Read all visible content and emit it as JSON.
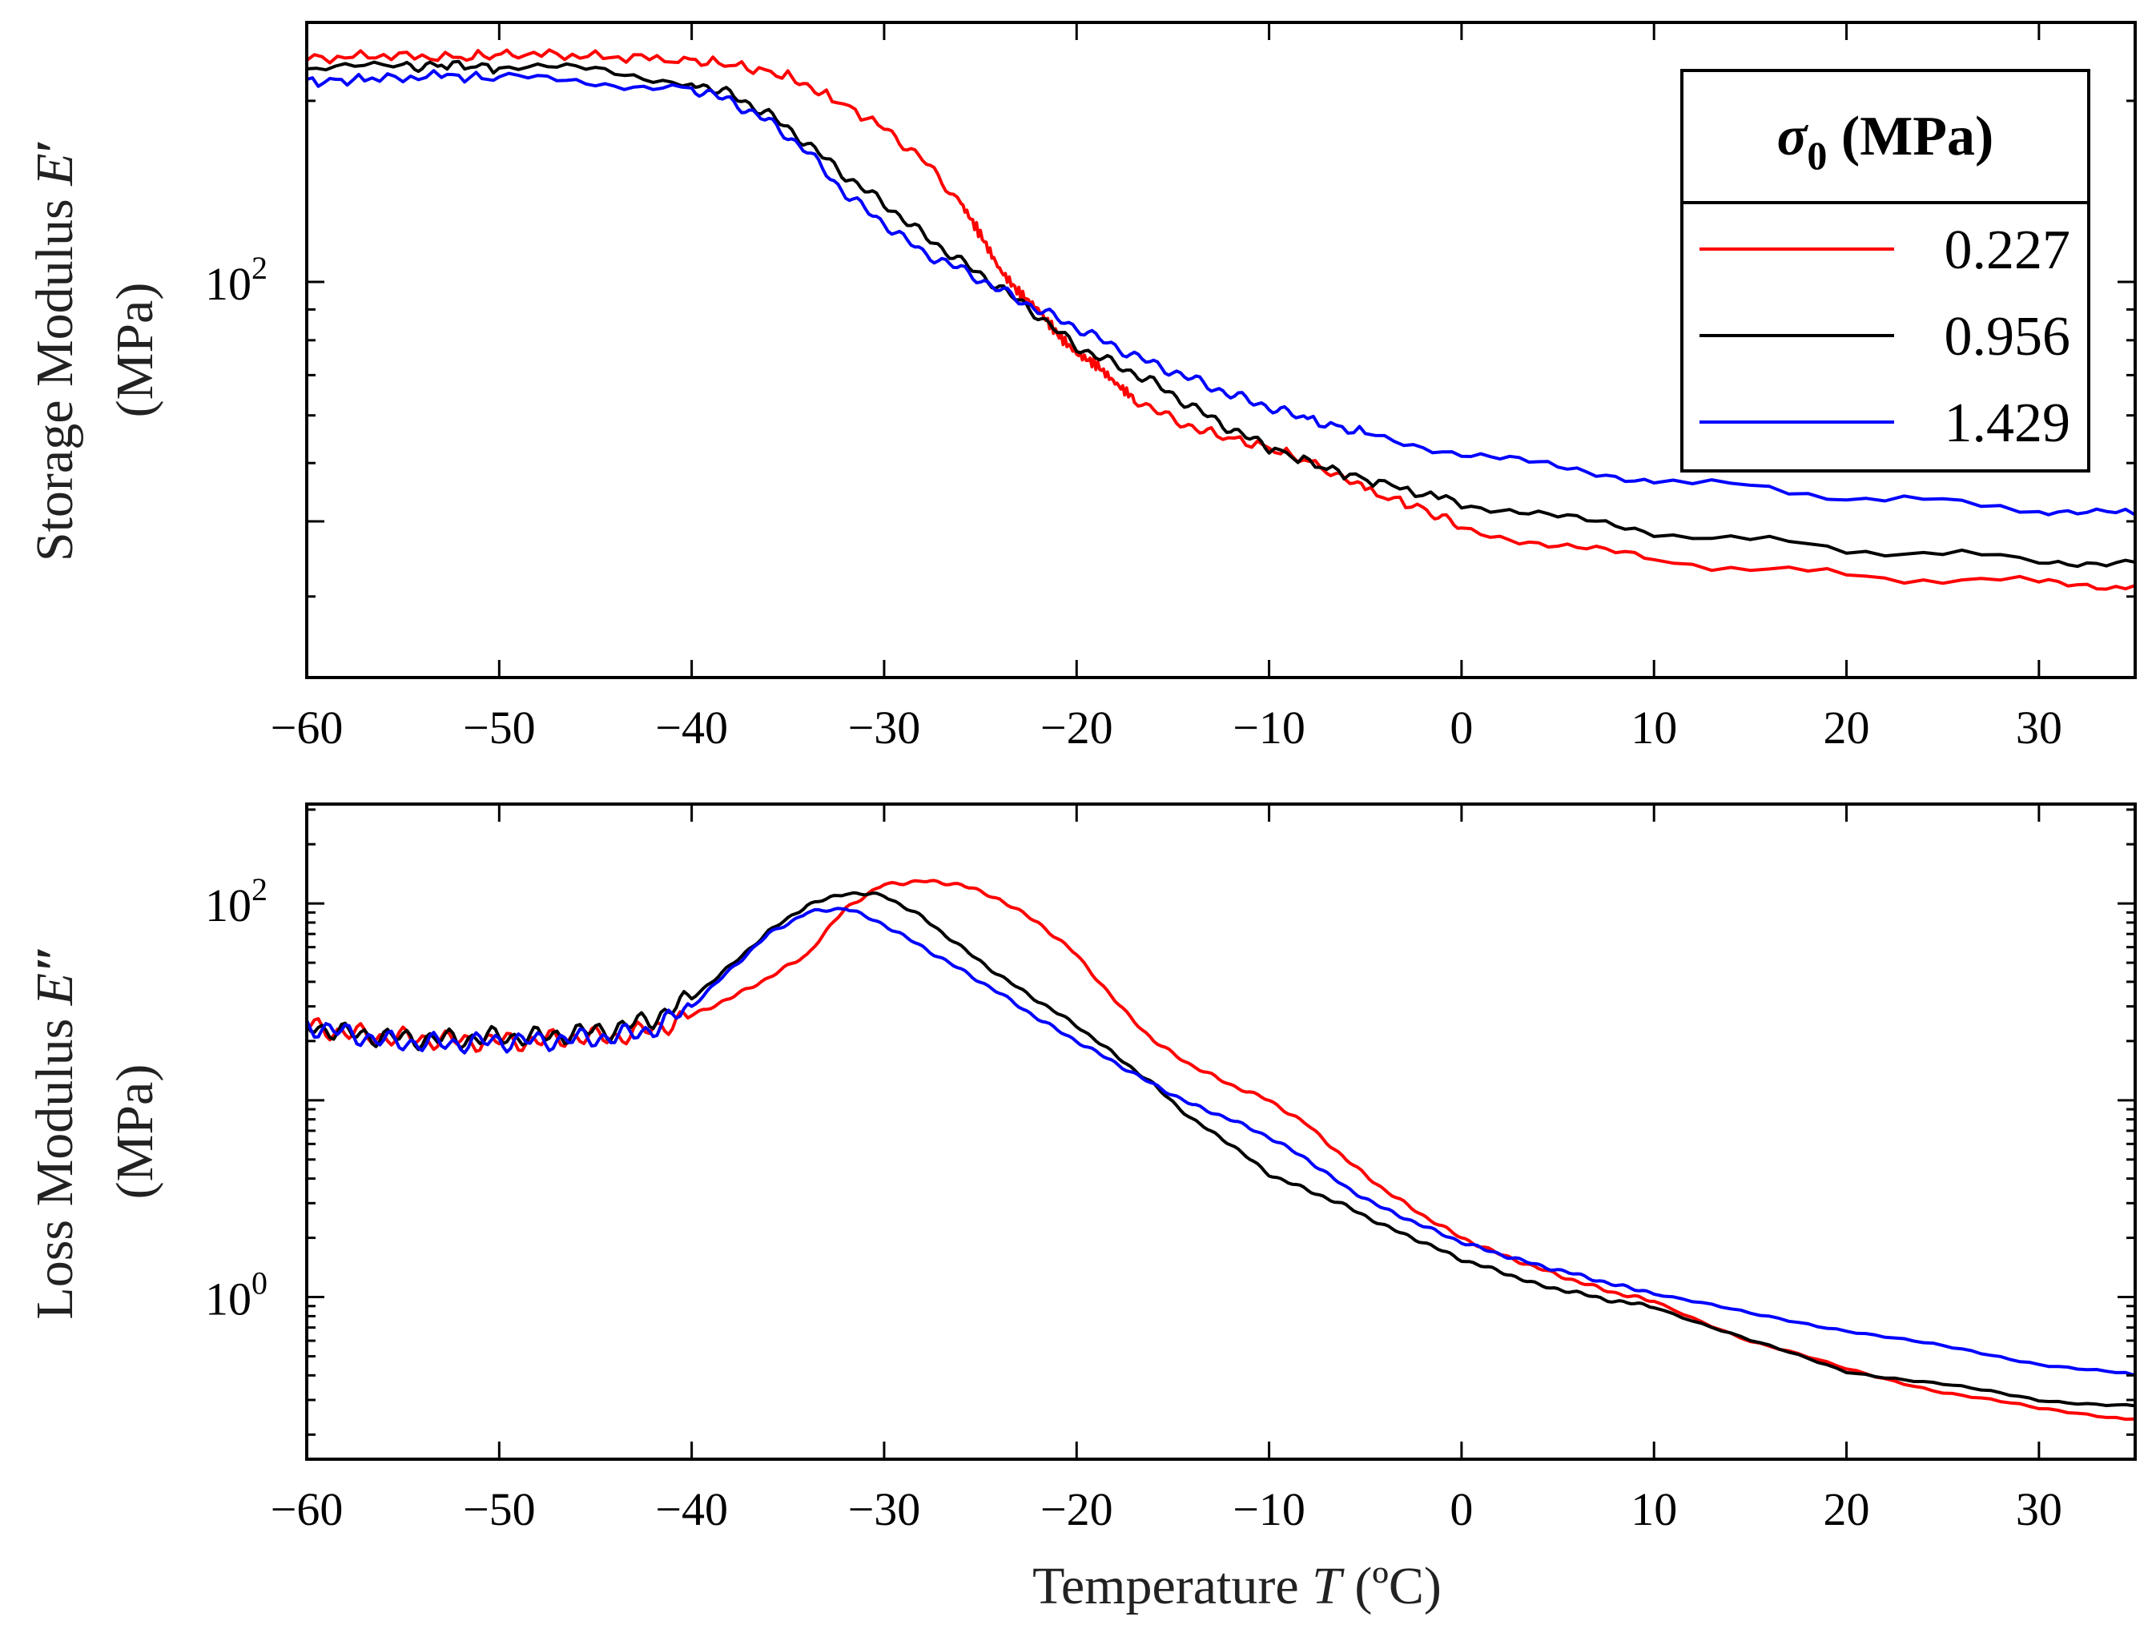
{
  "chart_data": [
    {
      "type": "line",
      "id": "storage",
      "ylabel_line1": "Storage Modulus",
      "ylabel_symbol": "E",
      "ylabel_prime": "′",
      "ylabel_line2": "(MPa)",
      "yscale": "log",
      "ylim": [
        22,
        270
      ],
      "xlim": [
        -60,
        35
      ],
      "xticks": [
        -60,
        -50,
        -40,
        -30,
        -20,
        -10,
        0,
        10,
        20,
        30
      ],
      "xtick_labels": [
        "−60",
        "−50",
        "−40",
        "−30",
        "−20",
        "−10",
        "0",
        "10",
        "20",
        "30"
      ],
      "ytick_label_base": "10",
      "ytick_label_exp": "2",
      "ytick_label_value": 100,
      "minor_yticks": [
        40
      ],
      "legend": {
        "title_symbol": "σ",
        "title_sub": "0",
        "title_unit": " (MPa)",
        "position": "top-right"
      },
      "series": [
        {
          "name": "0.227",
          "color": "#ff0000",
          "x": [
            -60,
            -56,
            -52,
            -49,
            -45,
            -41,
            -38,
            -35,
            -33,
            -30,
            -28,
            -26,
            -25,
            -24,
            -23,
            -22,
            -21,
            -20,
            -19,
            -18,
            -17,
            -15,
            -13,
            -10,
            -7,
            -5,
            -2,
            0,
            5,
            10,
            20,
            30,
            35
          ],
          "y": [
            235,
            238,
            236,
            240,
            237,
            235,
            230,
            220,
            205,
            180,
            160,
            135,
            120,
            105,
            96,
            90,
            82,
            76,
            73,
            68,
            64,
            59,
            56,
            53,
            49,
            45,
            42,
            39,
            36.5,
            34.5,
            32.5,
            31.6,
            31.3
          ]
        },
        {
          "name": "0.956",
          "color": "#000000",
          "x": [
            -60,
            -55,
            -53,
            -50,
            -45,
            -40,
            -38,
            -36,
            -34,
            -32,
            -30,
            -28,
            -26,
            -24,
            -22,
            -20,
            -18,
            -16,
            -14,
            -12,
            -10,
            -7,
            -4,
            0,
            5,
            10,
            20,
            30,
            35
          ],
          "y": [
            225,
            228,
            230,
            227,
            225,
            215,
            205,
            190,
            170,
            150,
            135,
            120,
            108,
            98,
            88,
            78,
            73,
            68,
            62,
            57,
            53,
            49,
            46,
            43,
            40.5,
            38.5,
            36,
            34.5,
            34.2
          ]
        },
        {
          "name": "1.429",
          "color": "#0000ff",
          "x": [
            -60,
            -57,
            -53,
            -50,
            -45,
            -40,
            -38,
            -36,
            -34,
            -32,
            -30,
            -28,
            -26,
            -24,
            -22,
            -20,
            -18,
            -16,
            -14,
            -12,
            -10,
            -8,
            -5,
            0,
            5,
            10,
            20,
            30,
            35
          ],
          "y": [
            215,
            217,
            220,
            218,
            215,
            210,
            200,
            185,
            165,
            140,
            125,
            112,
            105,
            97,
            90,
            84,
            78,
            73,
            69,
            65,
            62,
            59,
            56,
            52,
            49,
            47,
            44,
            42,
            41
          ]
        }
      ]
    },
    {
      "type": "line",
      "id": "loss",
      "ylabel_line1": "Loss Modulus",
      "ylabel_symbol": "E",
      "ylabel_prime": "″",
      "ylabel_line2": "(MPa)",
      "xlabel_text": "Temperature ",
      "xlabel_symbol": "T",
      "xlabel_unit": " (ºC)",
      "yscale": "log",
      "ylim": [
        0.15,
        320
      ],
      "xlim": [
        -60,
        35
      ],
      "xticks": [
        -60,
        -50,
        -40,
        -30,
        -20,
        -10,
        0,
        10,
        20,
        30
      ],
      "xtick_labels": [
        "−60",
        "−50",
        "−40",
        "−30",
        "−20",
        "−10",
        "0",
        "10",
        "20",
        "30"
      ],
      "yticks": [
        {
          "value": 1,
          "base": "10",
          "exp": "0"
        },
        {
          "value": 100,
          "base": "10",
          "exp": "2"
        }
      ],
      "series": [
        {
          "name": "0.227",
          "color": "#ff0000",
          "x": [
            -60,
            -58,
            -56,
            -54,
            -52,
            -50,
            -48,
            -46,
            -44,
            -42,
            -40,
            -38,
            -36,
            -34,
            -32,
            -30,
            -28,
            -26,
            -24,
            -22,
            -20,
            -18,
            -16,
            -14,
            -12,
            -10,
            -8,
            -6,
            -4,
            -2,
            0,
            2,
            4,
            6,
            8,
            10,
            15,
            20,
            25,
            30,
            35
          ],
          "y": [
            24,
            22,
            21,
            20.5,
            20,
            20,
            20,
            21,
            21,
            23,
            27,
            33,
            42,
            55,
            95,
            125,
            130,
            125,
            105,
            80,
            55,
            32,
            20,
            15,
            12,
            10,
            7.5,
            5.0,
            3.5,
            2.6,
            2.0,
            1.65,
            1.4,
            1.2,
            1.05,
            0.95,
            0.6,
            0.43,
            0.33,
            0.27,
            0.24
          ]
        },
        {
          "name": "0.956",
          "color": "#000000",
          "x": [
            -60,
            -58,
            -56,
            -54,
            -52,
            -50,
            -48,
            -46,
            -44,
            -42,
            -40,
            -38,
            -36,
            -34,
            -32,
            -30,
            -28,
            -26,
            -24,
            -22,
            -20,
            -18,
            -16,
            -14,
            -12,
            -10,
            -8,
            -6,
            -4,
            -2,
            0,
            2,
            4,
            6,
            8,
            10,
            15,
            20,
            25,
            30,
            35
          ],
          "y": [
            24,
            22,
            21,
            20.5,
            20.5,
            21,
            21,
            22,
            23,
            26,
            33,
            48,
            72,
            98,
            113,
            110,
            85,
            60,
            43,
            32,
            24,
            17,
            12,
            8.0,
            6.0,
            4.2,
            3.5,
            2.9,
            2.3,
            1.9,
            1.55,
            1.35,
            1.15,
            1.05,
            0.95,
            0.9,
            0.6,
            0.42,
            0.36,
            0.3,
            0.28
          ]
        },
        {
          "name": "1.429",
          "color": "#0000ff",
          "x": [
            -60,
            -58,
            -56,
            -54,
            -52,
            -50,
            -48,
            -46,
            -44,
            -42,
            -40,
            -38,
            -36,
            -34,
            -32,
            -30,
            -28,
            -26,
            -24,
            -22,
            -20,
            -18,
            -16,
            -14,
            -12,
            -10,
            -8,
            -6,
            -4,
            -2,
            0,
            2,
            4,
            6,
            8,
            10,
            15,
            20,
            25,
            30,
            35
          ],
          "y": [
            24,
            22,
            20,
            19.5,
            19.5,
            20,
            20,
            20.5,
            21,
            23,
            30,
            46,
            70,
            90,
            95,
            78,
            60,
            46,
            35,
            26,
            20,
            15.5,
            12,
            9.5,
            8.0,
            6.5,
            5.0,
            3.6,
            2.8,
            2.3,
            1.9,
            1.65,
            1.45,
            1.3,
            1.15,
            1.05,
            0.82,
            0.68,
            0.56,
            0.46,
            0.4
          ]
        }
      ]
    }
  ]
}
